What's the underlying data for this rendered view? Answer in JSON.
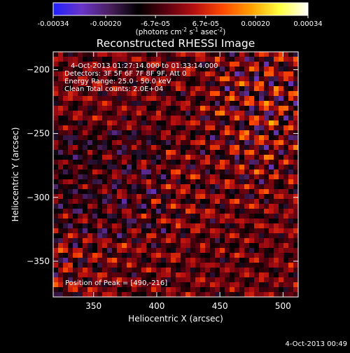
{
  "colorbar": {
    "min": -0.00034,
    "max": 0.00034,
    "tick_labels": [
      "-0.00034",
      "-0.00020",
      "-6.7e-05",
      "6.7e-05",
      "0.00020",
      "0.00034"
    ],
    "tick_values": [
      -0.00034,
      -0.0002,
      -6.7e-05,
      6.7e-05,
      0.0002,
      0.00034
    ],
    "units_main": "(photons cm",
    "units_sup1": "-2",
    "units_mid": " s",
    "units_sup2": "-1",
    "units_end": " asec",
    "units_sup3": "-2",
    "units_close": ")",
    "colors": [
      "#2020ff",
      "#6a35c8",
      "#4a1f5e",
      "#000000",
      "#5a0010",
      "#b81010",
      "#ff4a00",
      "#ffa000",
      "#ffff40",
      "#ffffff"
    ]
  },
  "chart_data": {
    "type": "heatmap",
    "title": "Reconstructed RHESSI Image",
    "xlabel": "Heliocentric X (arcsec)",
    "ylabel": "Heliocentric Y (arcsec)",
    "xlim": [
      318,
      512
    ],
    "ylim": [
      -378,
      -186
    ],
    "x_ticks": [
      350,
      400,
      450,
      500
    ],
    "y_ticks": [
      -200,
      -250,
      -300,
      -350
    ],
    "annotations": {
      "time_range": "4-Oct-2013 01:27:14.000 to 01:33:14.000",
      "detectors": "Detectors: 3F 5F 6F 7F 8F 9F, Att 0",
      "energy": "Energy Range: 25.0 - 50.0 keV",
      "clean": "Clean    Total counts: 2.0E+04",
      "peak": "Position of Peak = [490,-216]"
    },
    "peak": [
      490,
      -216
    ],
    "footer_date": "4-Oct-2013 00:49"
  }
}
